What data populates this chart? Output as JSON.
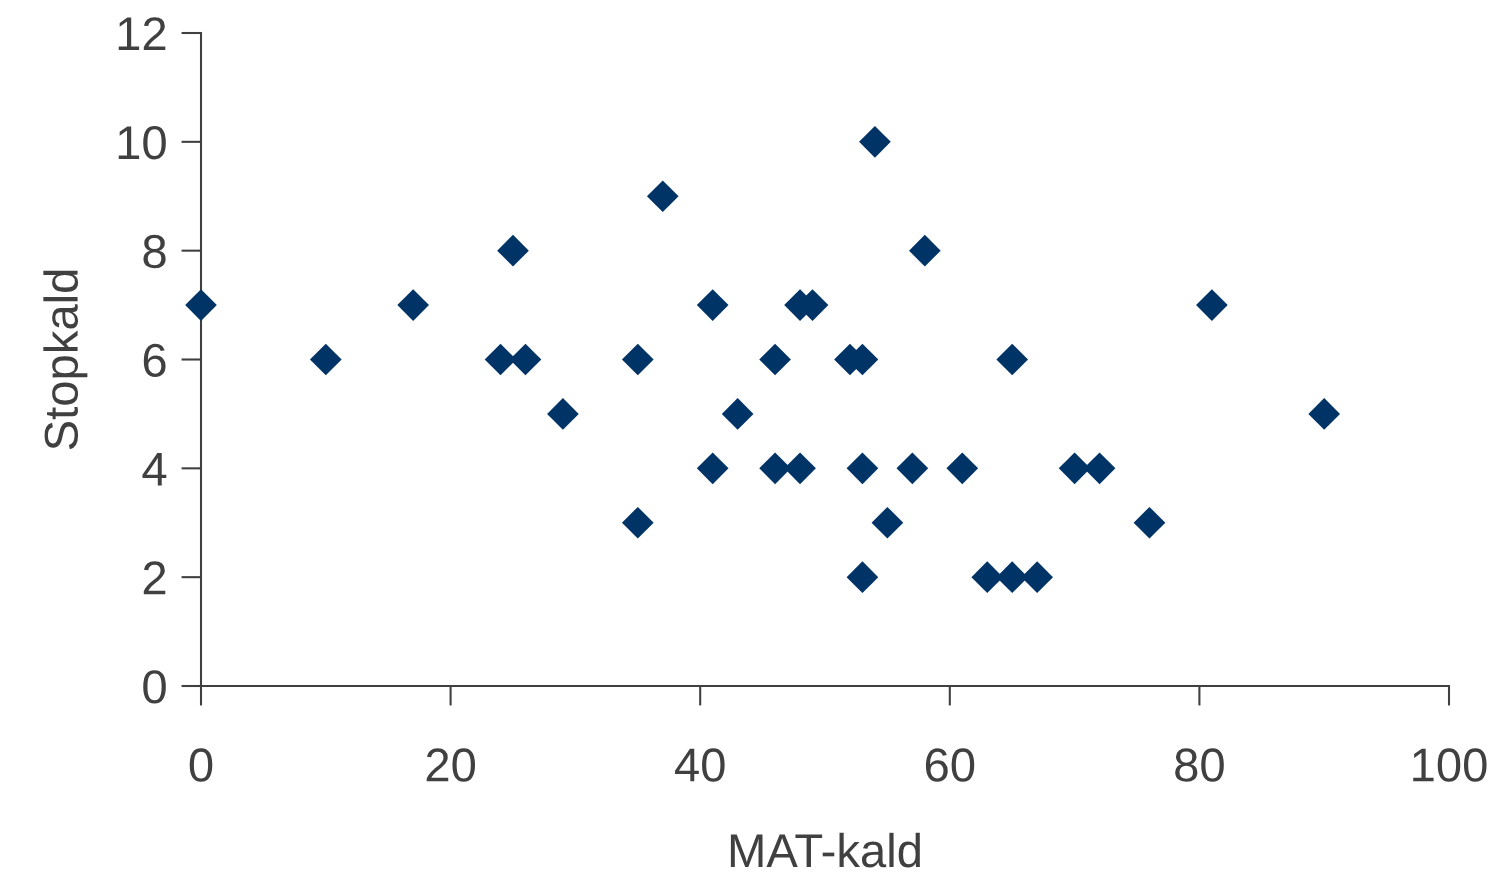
{
  "chart_data": {
    "type": "scatter",
    "xlabel": "MAT-kald",
    "ylabel": "Stopkald",
    "x": [
      0,
      10,
      17,
      24,
      25,
      26,
      29,
      35,
      35,
      37,
      41,
      41,
      43,
      46,
      46,
      48,
      48,
      49,
      52,
      53,
      53,
      53,
      54,
      55,
      57,
      58,
      61,
      63,
      65,
      65,
      67,
      70,
      72,
      76,
      81,
      90
    ],
    "values": [
      7,
      6,
      7,
      6,
      8,
      6,
      5,
      6,
      3,
      9,
      7,
      4,
      5,
      6,
      4,
      4,
      7,
      7,
      6,
      6,
      4,
      2,
      10,
      3,
      4,
      8,
      4,
      2,
      6,
      2,
      2,
      4,
      4,
      3,
      7,
      5
    ],
    "color": "#003366",
    "marker": "diamond",
    "grid": false,
    "legend": false,
    "xlim": [
      0,
      100
    ],
    "xticks": [
      0,
      20,
      40,
      60,
      80,
      100
    ],
    "ylim": [
      0,
      12
    ],
    "yticks": [
      0,
      2,
      4,
      6,
      8,
      10,
      12
    ]
  }
}
